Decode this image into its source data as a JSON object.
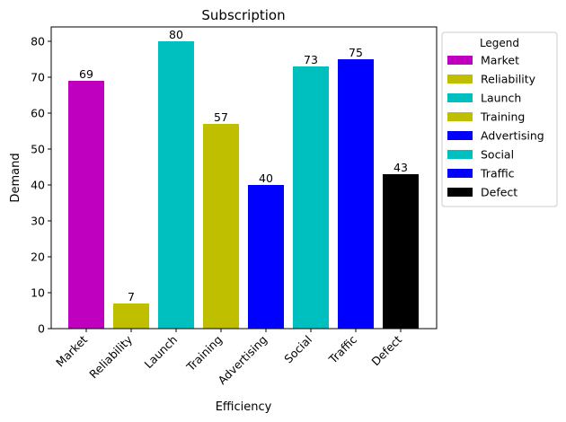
{
  "chart_data": {
    "type": "bar",
    "title": "Subscription",
    "xlabel": "Efficiency",
    "ylabel": "Demand",
    "ylim": [
      0,
      84
    ],
    "yticks": [
      0,
      10,
      20,
      30,
      40,
      50,
      60,
      70,
      80
    ],
    "categories": [
      "Market",
      "Reliability",
      "Launch",
      "Training",
      "Advertising",
      "Social",
      "Traffic",
      "Defect"
    ],
    "values": [
      69,
      7,
      80,
      57,
      40,
      73,
      75,
      43
    ],
    "colors": [
      "#bf00bf",
      "#bfbf00",
      "#00bfbf",
      "#bfbf00",
      "#0000ff",
      "#00bfbf",
      "#0000ff",
      "#000000"
    ],
    "grid": false,
    "legend": {
      "title": "Legend",
      "placement": "outside-right-top",
      "entries": [
        "Market",
        "Reliability",
        "Launch",
        "Training",
        "Advertising",
        "Social",
        "Traffic",
        "Defect"
      ]
    }
  }
}
